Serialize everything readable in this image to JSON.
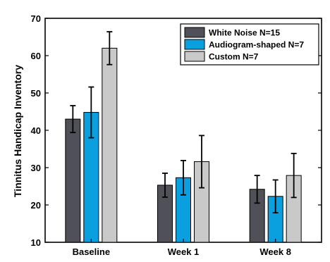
{
  "chart_data": {
    "type": "bar",
    "title": "",
    "xlabel": "",
    "ylabel": "Tinnitus Handicap Inventory",
    "ylim": [
      10,
      70
    ],
    "yticks": [
      10,
      20,
      30,
      40,
      50,
      60,
      70
    ],
    "grid": false,
    "legend_position": "top-right",
    "categories": [
      "Baseline",
      "Week 1",
      "Week 8"
    ],
    "series": [
      {
        "name": "White Noise N=15",
        "color": "#505058",
        "values": [
          43,
          25.3,
          24.2
        ],
        "error": [
          3.6,
          3.2,
          3.7
        ]
      },
      {
        "name": "Audiogram-shaped N=7",
        "color": "#0aa0df",
        "values": [
          44.8,
          27.3,
          22.3
        ],
        "error": [
          6.8,
          4.6,
          4.4
        ]
      },
      {
        "name": "Custom N=7",
        "color": "#c9c9c9",
        "values": [
          62,
          31.6,
          27.9
        ],
        "error": [
          4.4,
          7.0,
          5.9
        ]
      }
    ]
  }
}
